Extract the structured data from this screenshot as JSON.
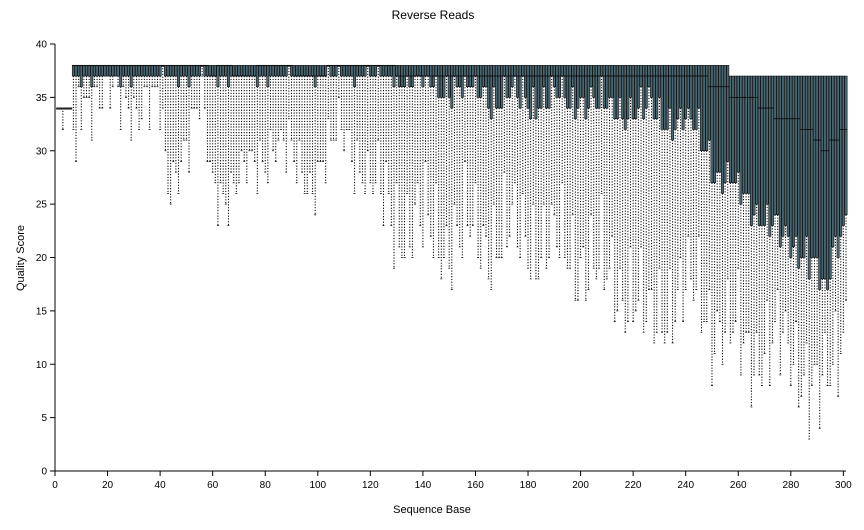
{
  "chart_data": {
    "type": "boxplot",
    "title": "Reverse Reads",
    "xlabel": "Sequence Base",
    "ylabel": "Quality Score",
    "xlim": [
      0,
      301
    ],
    "ylim": [
      0,
      40
    ],
    "xticks": [
      0,
      20,
      40,
      60,
      80,
      100,
      120,
      140,
      160,
      180,
      200,
      220,
      240,
      260,
      280,
      300
    ],
    "yticks": [
      0,
      5,
      10,
      15,
      20,
      25,
      30,
      35,
      40
    ],
    "grid": false,
    "legend": "none",
    "colors": {
      "box_fill": "#4a6670",
      "whisker": "#000000",
      "axis": "#000000"
    },
    "box_keypoints": [
      {
        "x": 1,
        "q1": 34,
        "med": 34,
        "q3": 34,
        "lo": 34,
        "hi": 34
      },
      {
        "x": 6,
        "q1": 34,
        "med": 34,
        "q3": 34,
        "lo": 34,
        "hi": 34
      },
      {
        "x": 7,
        "q1": 37,
        "med": 38,
        "q3": 38,
        "lo": 32,
        "hi": 38
      },
      {
        "x": 8,
        "q1": 37,
        "med": 38,
        "q3": 38,
        "lo": 27,
        "hi": 38
      },
      {
        "x": 9,
        "q1": 37,
        "med": 38,
        "q3": 38,
        "lo": 35,
        "hi": 38
      },
      {
        "x": 20,
        "q1": 37,
        "med": 38,
        "q3": 38,
        "lo": 35,
        "hi": 38
      },
      {
        "x": 40,
        "q1": 37,
        "med": 38,
        "q3": 38,
        "lo": 34,
        "hi": 38
      },
      {
        "x": 43,
        "q1": 37,
        "med": 38,
        "q3": 38,
        "lo": 27,
        "hi": 38
      },
      {
        "x": 56,
        "q1": 37,
        "med": 38,
        "q3": 38,
        "lo": 34,
        "hi": 38
      },
      {
        "x": 60,
        "q1": 37,
        "med": 37,
        "q3": 38,
        "lo": 27,
        "hi": 38
      },
      {
        "x": 64,
        "q1": 37,
        "med": 38,
        "q3": 38,
        "lo": 26,
        "hi": 38
      },
      {
        "x": 70,
        "q1": 37,
        "med": 37,
        "q3": 38,
        "lo": 27,
        "hi": 38
      },
      {
        "x": 84,
        "q1": 37,
        "med": 38,
        "q3": 38,
        "lo": 31,
        "hi": 38
      },
      {
        "x": 97,
        "q1": 37,
        "med": 37,
        "q3": 38,
        "lo": 27,
        "hi": 38
      },
      {
        "x": 110,
        "q1": 37,
        "med": 38,
        "q3": 38,
        "lo": 32,
        "hi": 38
      },
      {
        "x": 124,
        "q1": 37,
        "med": 38,
        "q3": 38,
        "lo": 25,
        "hi": 38
      },
      {
        "x": 135,
        "q1": 37,
        "med": 37,
        "q3": 38,
        "lo": 23,
        "hi": 38
      },
      {
        "x": 150,
        "q1": 36,
        "med": 37,
        "q3": 38,
        "lo": 22,
        "hi": 38
      },
      {
        "x": 160,
        "q1": 36,
        "med": 37,
        "q3": 38,
        "lo": 22,
        "hi": 38
      },
      {
        "x": 170,
        "q1": 35,
        "med": 37,
        "q3": 38,
        "lo": 22,
        "hi": 38
      },
      {
        "x": 180,
        "q1": 35,
        "med": 37,
        "q3": 38,
        "lo": 22,
        "hi": 38
      },
      {
        "x": 190,
        "q1": 35,
        "med": 37,
        "q3": 38,
        "lo": 21,
        "hi": 38
      },
      {
        "x": 200,
        "q1": 35,
        "med": 37,
        "q3": 38,
        "lo": 20,
        "hi": 38
      },
      {
        "x": 210,
        "q1": 34,
        "med": 37,
        "q3": 38,
        "lo": 18,
        "hi": 38
      },
      {
        "x": 220,
        "q1": 34,
        "med": 37,
        "q3": 38,
        "lo": 17,
        "hi": 38
      },
      {
        "x": 226,
        "q1": 34,
        "med": 37,
        "q3": 38,
        "lo": 13,
        "hi": 38
      },
      {
        "x": 235,
        "q1": 33,
        "med": 37,
        "q3": 38,
        "lo": 17,
        "hi": 38
      },
      {
        "x": 245,
        "q1": 32,
        "med": 37,
        "q3": 38,
        "lo": 16,
        "hi": 38
      },
      {
        "x": 252,
        "q1": 28,
        "med": 36,
        "q3": 38,
        "lo": 14,
        "hi": 38
      },
      {
        "x": 260,
        "q1": 26,
        "med": 35,
        "q3": 37,
        "lo": 12,
        "hi": 38
      },
      {
        "x": 264,
        "q1": 25,
        "med": 35,
        "q3": 37,
        "lo": 11,
        "hi": 38
      },
      {
        "x": 270,
        "q1": 24,
        "med": 34,
        "q3": 37,
        "lo": 12,
        "hi": 38
      },
      {
        "x": 276,
        "q1": 22,
        "med": 33,
        "q3": 37,
        "lo": 11,
        "hi": 37
      },
      {
        "x": 280,
        "q1": 21,
        "med": 33,
        "q3": 37,
        "lo": 11,
        "hi": 37
      },
      {
        "x": 286,
        "q1": 21,
        "med": 32,
        "q3": 37,
        "lo": 10,
        "hi": 37
      },
      {
        "x": 290,
        "q1": 19,
        "med": 31,
        "q3": 37,
        "lo": 7,
        "hi": 37
      },
      {
        "x": 293,
        "q1": 16,
        "med": 30,
        "q3": 37,
        "lo": 7,
        "hi": 38
      },
      {
        "x": 296,
        "q1": 20,
        "med": 31,
        "q3": 37,
        "lo": 9,
        "hi": 38
      },
      {
        "x": 301,
        "q1": 24,
        "med": 32,
        "q3": 37,
        "lo": 15,
        "hi": 37
      }
    ]
  }
}
